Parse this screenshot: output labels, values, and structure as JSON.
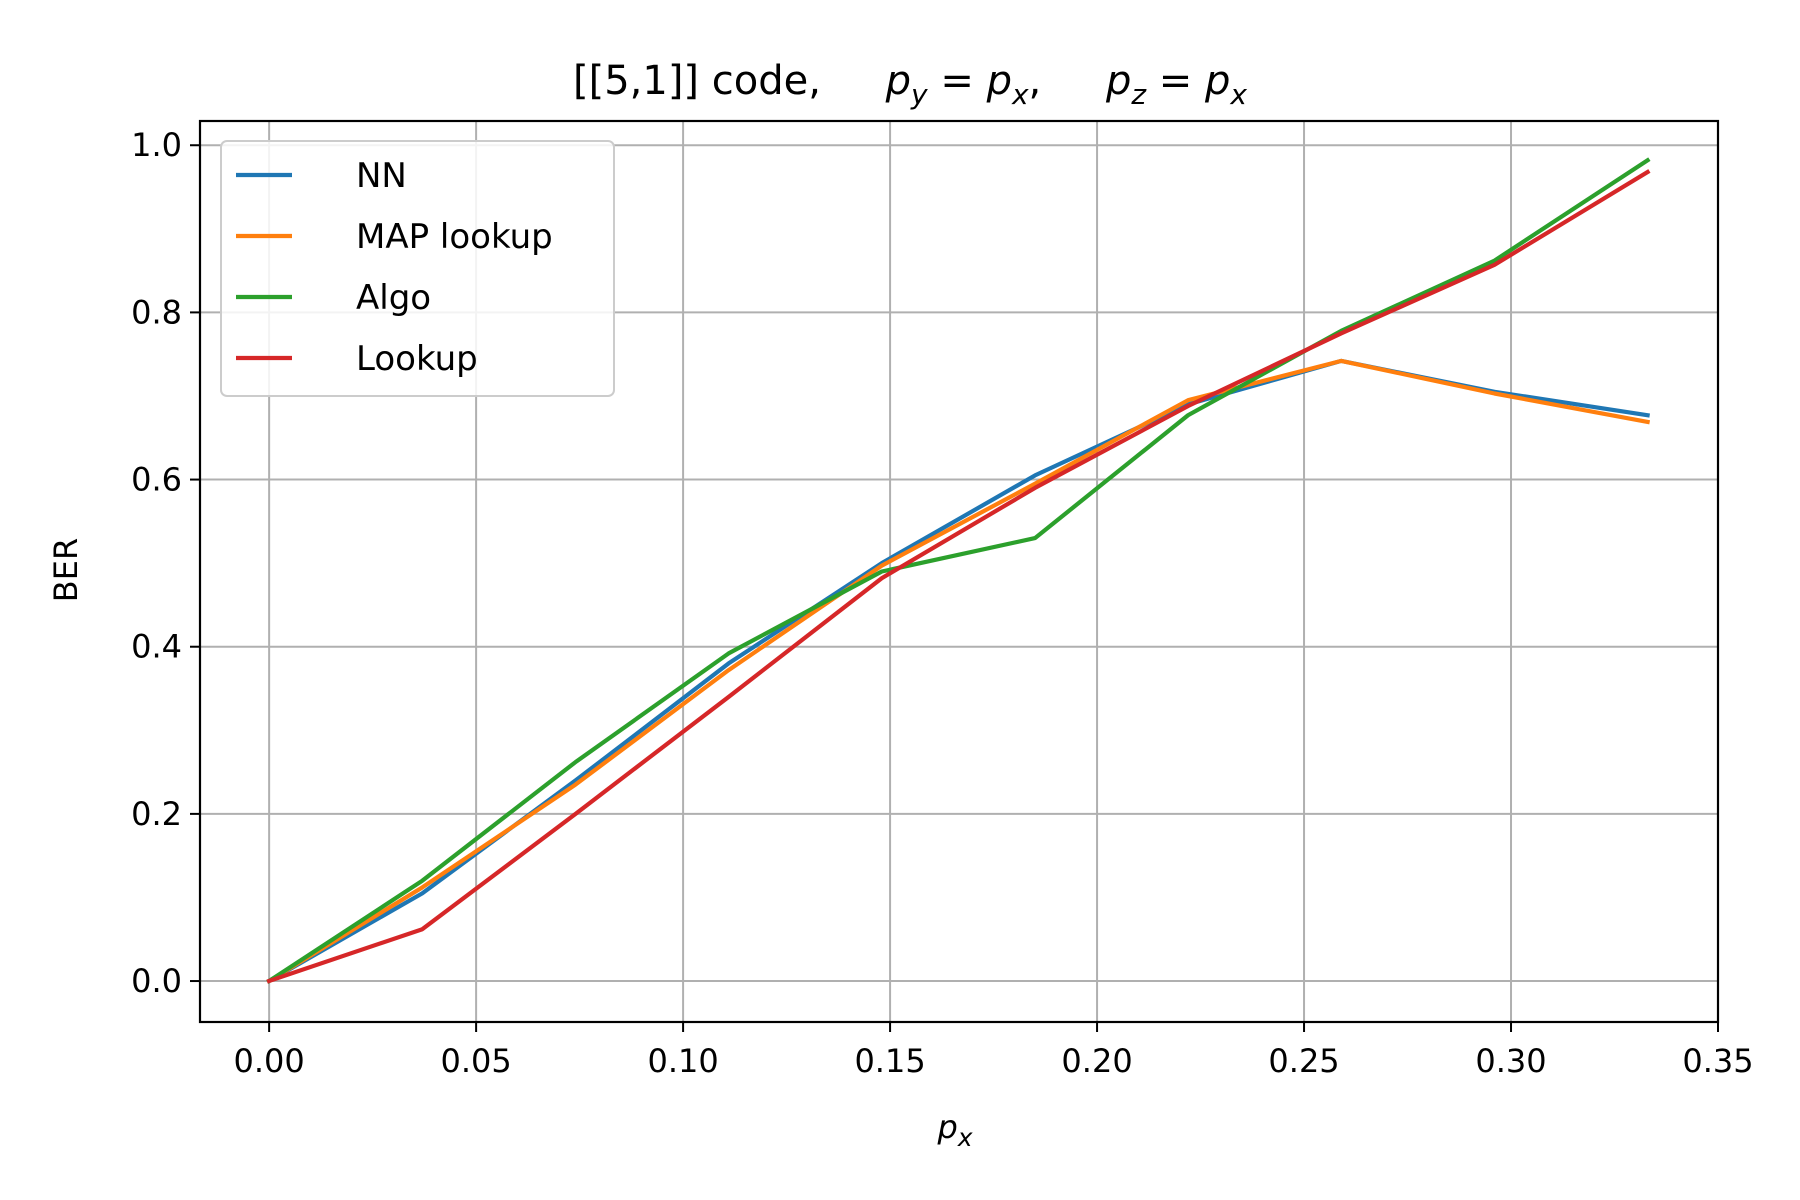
{
  "chart_data": {
    "type": "line",
    "title": {
      "prefix": "[[5,1]] code,",
      "eq1": {
        "lhs": "p",
        "lhs_sub": "y",
        "op": " = ",
        "rhs": "p",
        "rhs_sub": "x",
        "trail": ","
      },
      "eq2": {
        "lhs": "p",
        "lhs_sub": "z",
        "op": " = ",
        "rhs": "p",
        "rhs_sub": "x"
      }
    },
    "xlabel": {
      "main": "p",
      "sub": "x"
    },
    "ylabel": "BER",
    "xlim": [
      -0.0167,
      0.35
    ],
    "ylim": [
      -0.049,
      1.029
    ],
    "xticks": [
      0.0,
      0.05,
      0.1,
      0.15,
      0.2,
      0.25,
      0.3,
      0.35
    ],
    "xtick_labels": [
      "0.00",
      "0.05",
      "0.10",
      "0.15",
      "0.20",
      "0.25",
      "0.30",
      "0.35"
    ],
    "yticks": [
      0.0,
      0.2,
      0.4,
      0.6,
      0.8,
      1.0
    ],
    "ytick_labels": [
      "0.0",
      "0.2",
      "0.4",
      "0.6",
      "0.8",
      "1.0"
    ],
    "grid": true,
    "legend_position": "upper-left",
    "x": [
      0.0,
      0.037,
      0.074,
      0.111,
      0.148,
      0.185,
      0.222,
      0.259,
      0.296,
      0.333
    ],
    "series": [
      {
        "name": "NN",
        "color": "#1f77b4",
        "values": [
          0.0,
          0.105,
          0.24,
          0.38,
          0.5,
          0.605,
          0.69,
          0.742,
          0.705,
          0.677
        ]
      },
      {
        "name": "MAP lookup",
        "color": "#ff7f0e",
        "values": [
          0.0,
          0.112,
          0.235,
          0.372,
          0.497,
          0.595,
          0.695,
          0.742,
          0.703,
          0.669
        ]
      },
      {
        "name": "Algo",
        "color": "#2ca02c",
        "values": [
          0.0,
          0.12,
          0.262,
          0.392,
          0.49,
          0.53,
          0.677,
          0.778,
          0.862,
          0.982
        ]
      },
      {
        "name": "Lookup",
        "color": "#d62728",
        "values": [
          0.0,
          0.062,
          0.2,
          0.34,
          0.482,
          0.59,
          0.688,
          0.775,
          0.857,
          0.968
        ]
      }
    ]
  }
}
